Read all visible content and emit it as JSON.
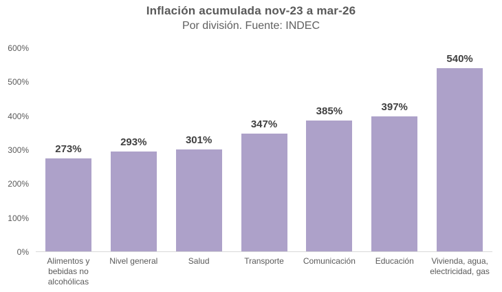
{
  "header": {
    "title": "Inflación acumulada nov-23 a mar-26",
    "subtitle": "Por división. Fuente: INDEC"
  },
  "chart_data": {
    "type": "bar",
    "title": "Inflación acumulada nov-23 a mar-26",
    "subtitle": "Por división. Fuente: INDEC",
    "categories": [
      "Alimentos y bebidas no alcohólicas",
      "Nivel general",
      "Salud",
      "Transporte",
      "Comunicación",
      "Educación",
      "Vivienda, agua, electricidad, gas"
    ],
    "values": [
      273,
      293,
      301,
      347,
      385,
      397,
      540
    ],
    "value_labels": [
      "273%",
      "293%",
      "301%",
      "347%",
      "385%",
      "397%",
      "540%"
    ],
    "xlabel": "",
    "ylabel": "",
    "ylim": [
      0,
      600
    ],
    "yticks": [
      0,
      100,
      200,
      300,
      400,
      500,
      600
    ],
    "ytick_labels": [
      "0%",
      "100%",
      "200%",
      "300%",
      "400%",
      "500%",
      "600%"
    ],
    "grid": false,
    "legend": false
  },
  "colors": {
    "bar_fill": "#ada1c9",
    "title_text": "#595959",
    "subtitle_text": "#5f5f5f",
    "value_label_text": "#404040",
    "axis_text": "#595959",
    "axis_line": "#d9d9d9",
    "background": "#ffffff"
  }
}
